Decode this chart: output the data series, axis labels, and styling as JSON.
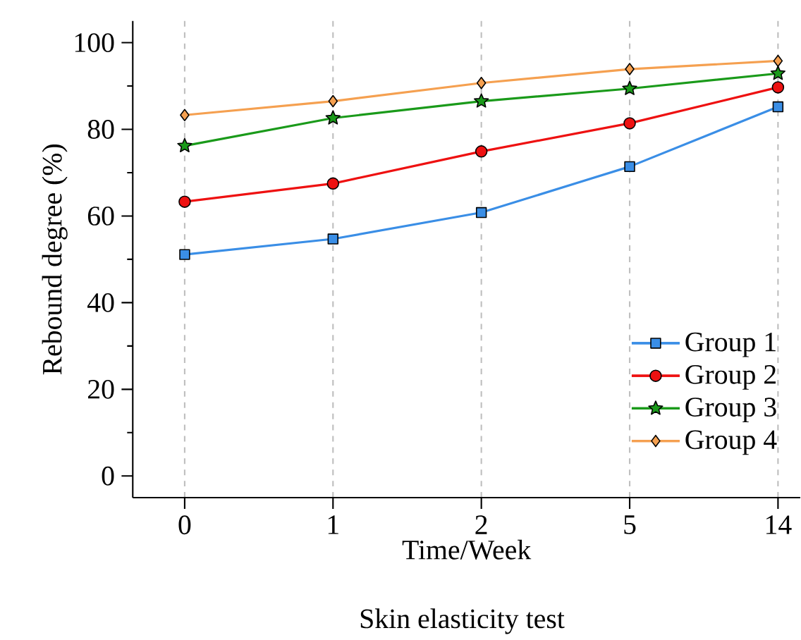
{
  "chart_data": {
    "type": "line",
    "xlabel": "Time/Week",
    "ylabel": "Rebound degree (%)",
    "annotations": [
      "Skin elasticity test"
    ],
    "categories": [
      "0",
      "1",
      "2",
      "5",
      "14"
    ],
    "ylim": [
      -5,
      105
    ],
    "yticks": [
      0,
      20,
      40,
      60,
      80,
      100
    ],
    "grid": "x",
    "legend": "bottom right",
    "series": [
      {
        "name": "Group 1",
        "color": "#3a8ee6",
        "marker": "square",
        "values": [
          51.1,
          54.7,
          60.8,
          71.4,
          85.2
        ]
      },
      {
        "name": "Group 2",
        "color": "#ee1111",
        "marker": "circle",
        "values": [
          63.3,
          67.5,
          74.9,
          81.4,
          89.7
        ]
      },
      {
        "name": "Group 3",
        "color": "#1a9a1a",
        "marker": "star",
        "values": [
          76.2,
          82.6,
          86.5,
          89.4,
          92.9
        ]
      },
      {
        "name": "Group 4",
        "color": "#f5a050",
        "marker": "diamond",
        "values": [
          83.3,
          86.5,
          90.7,
          93.9,
          95.8
        ]
      }
    ]
  }
}
